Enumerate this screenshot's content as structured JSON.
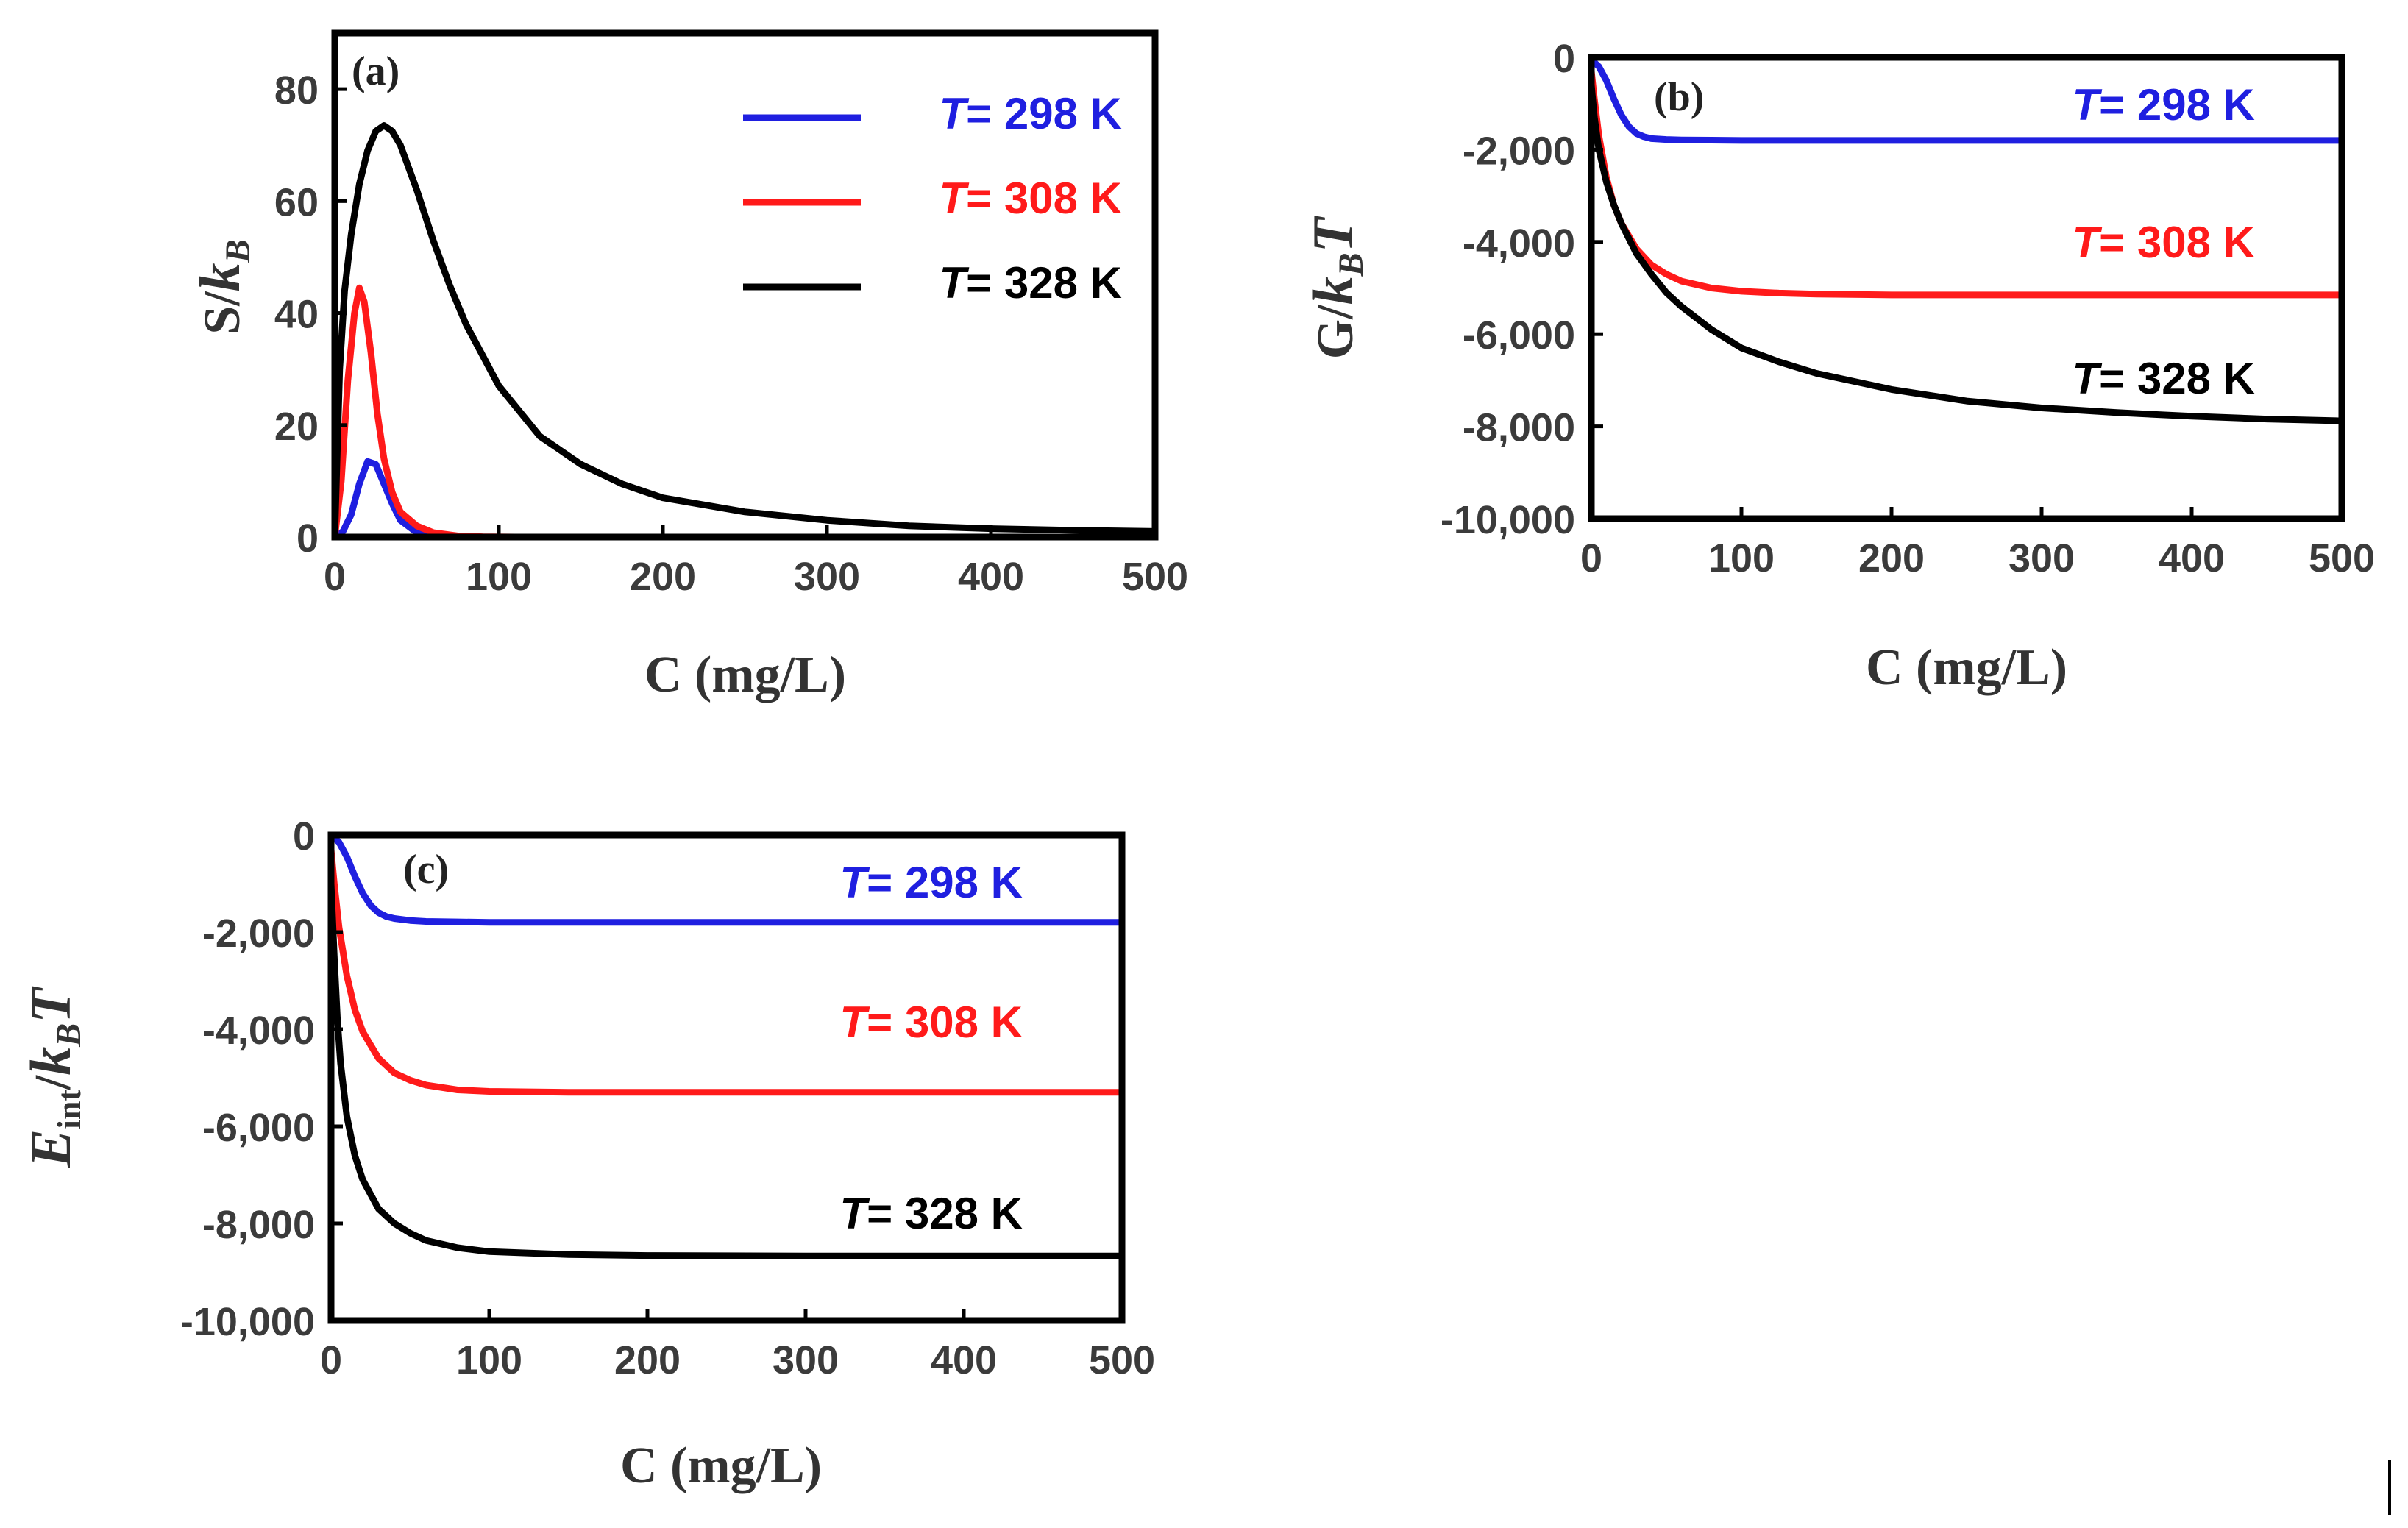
{
  "chart_data": [
    {
      "type": "line",
      "panel_label": "(a)",
      "xlabel": "C (mg/L)",
      "ylabel": "S/k_B",
      "ylabel_parts": {
        "main": "S/",
        "var": "k",
        "sub": "B",
        "tail": ""
      },
      "xlim": [
        0,
        500
      ],
      "ylim": [
        0,
        90
      ],
      "xticks": [
        0,
        100,
        200,
        300,
        400,
        500
      ],
      "xtick_labels": [
        "0",
        "100",
        "200",
        "300",
        "400",
        "500"
      ],
      "yticks": [
        0,
        20,
        40,
        60,
        80
      ],
      "ytick_labels": [
        "0",
        "20",
        "40",
        "60",
        "80"
      ],
      "legend": "top-right",
      "series": [
        {
          "name": "T= 298 K",
          "label_var": "T",
          "label_rest": "= 298 K",
          "color": "#1f1fe0",
          "x": [
            0,
            5,
            10,
            15,
            20,
            25,
            30,
            35,
            40,
            50,
            60,
            80
          ],
          "y": [
            0,
            1,
            4,
            9.5,
            13.5,
            13,
            9.5,
            6,
            3,
            0.8,
            0.2,
            0
          ]
        },
        {
          "name": "T= 308 K",
          "label_var": "T",
          "label_rest": "= 308 K",
          "color": "#ff1a1a",
          "x": [
            0,
            4,
            8,
            12,
            15,
            18,
            22,
            26,
            30,
            35,
            40,
            50,
            60,
            75,
            90,
            110
          ],
          "y": [
            0,
            10,
            28,
            40,
            44.5,
            42,
            33,
            22,
            14,
            8,
            4.5,
            2,
            0.8,
            0.2,
            0.05,
            0
          ]
        },
        {
          "name": "T= 328 K",
          "label_var": "T",
          "label_rest": "= 328 K",
          "color": "#000000",
          "x": [
            0,
            3,
            6,
            10,
            15,
            20,
            25,
            30,
            35,
            40,
            50,
            60,
            70,
            80,
            100,
            125,
            150,
            175,
            200,
            250,
            300,
            350,
            400,
            450,
            500
          ],
          "y": [
            0,
            30,
            44,
            54,
            63,
            69,
            72.5,
            73.5,
            72.5,
            70,
            62,
            53,
            45,
            38,
            27,
            18,
            13,
            9.5,
            7,
            4.5,
            3,
            2,
            1.5,
            1.2,
            1
          ]
        }
      ]
    },
    {
      "type": "line",
      "panel_label": "(b)",
      "xlabel": "C (mg/L)",
      "ylabel": "G/k_BT",
      "ylabel_parts": {
        "main": "G/",
        "var": "k",
        "sub": "B",
        "tail": "T"
      },
      "xlim": [
        0,
        500
      ],
      "ylim": [
        -10000,
        0
      ],
      "xticks": [
        0,
        100,
        200,
        300,
        400,
        500
      ],
      "xtick_labels": [
        "0",
        "100",
        "200",
        "300",
        "400",
        "500"
      ],
      "yticks": [
        0,
        -2000,
        -4000,
        -6000,
        -8000,
        -10000
      ],
      "ytick_labels": [
        "0",
        "-2,000",
        "-4,000",
        "-6,000",
        "-8,000",
        "-10,000"
      ],
      "series": [
        {
          "name": "T= 298 K",
          "label_var": "T",
          "label_rest": "= 298 K",
          "color": "#1f1fe0",
          "x": [
            0,
            5,
            10,
            15,
            20,
            25,
            30,
            35,
            40,
            50,
            60,
            80,
            100,
            200,
            300,
            400,
            500
          ],
          "y": [
            -50,
            -200,
            -500,
            -900,
            -1250,
            -1500,
            -1650,
            -1720,
            -1760,
            -1780,
            -1790,
            -1795,
            -1800,
            -1800,
            -1800,
            -1800,
            -1800
          ]
        },
        {
          "name": "T= 308 K",
          "label_var": "T",
          "label_rest": "= 308 K",
          "color": "#ff1a1a",
          "x": [
            0,
            2,
            5,
            10,
            15,
            20,
            30,
            40,
            50,
            60,
            80,
            100,
            125,
            150,
            200,
            250,
            300,
            400,
            500
          ],
          "y": [
            -300,
            -900,
            -1700,
            -2600,
            -3200,
            -3600,
            -4150,
            -4500,
            -4700,
            -4850,
            -5000,
            -5070,
            -5110,
            -5130,
            -5150,
            -5150,
            -5150,
            -5150,
            -5150
          ]
        },
        {
          "name": "T= 328 K",
          "label_var": "T",
          "label_rest": "= 328 K",
          "color": "#000000",
          "x": [
            0,
            2,
            5,
            10,
            15,
            20,
            30,
            40,
            50,
            60,
            80,
            100,
            125,
            150,
            200,
            250,
            300,
            350,
            400,
            450,
            500
          ],
          "y": [
            -600,
            -1300,
            -2000,
            -2700,
            -3200,
            -3600,
            -4250,
            -4700,
            -5100,
            -5400,
            -5900,
            -6300,
            -6600,
            -6850,
            -7200,
            -7450,
            -7600,
            -7700,
            -7780,
            -7840,
            -7880
          ]
        }
      ]
    },
    {
      "type": "line",
      "panel_label": "(c)",
      "xlabel": "C (mg/L)",
      "ylabel": "E_int/k_BT",
      "ylabel_parts": {
        "main": "E",
        "main_sub": "int",
        "slash": "/",
        "var": "k",
        "sub": "B",
        "tail": "T"
      },
      "xlim": [
        0,
        500
      ],
      "ylim": [
        -10000,
        0
      ],
      "xticks": [
        0,
        100,
        200,
        300,
        400,
        500
      ],
      "xtick_labels": [
        "0",
        "100",
        "200",
        "300",
        "400",
        "500"
      ],
      "yticks": [
        0,
        -2000,
        -4000,
        -6000,
        -8000,
        -10000
      ],
      "ytick_labels": [
        "0",
        "-2,000",
        "-4,000",
        "-6,000",
        "-8,000",
        "-10,000"
      ],
      "series": [
        {
          "name": "T= 298 K",
          "label_var": "T",
          "label_rest": "= 298 K",
          "color": "#1f1fe0",
          "x": [
            0,
            5,
            10,
            15,
            20,
            25,
            30,
            35,
            40,
            50,
            60,
            80,
            100,
            200,
            300,
            400,
            500
          ],
          "y": [
            0,
            -150,
            -450,
            -850,
            -1200,
            -1450,
            -1600,
            -1680,
            -1720,
            -1760,
            -1780,
            -1790,
            -1800,
            -1800,
            -1800,
            -1800,
            -1800
          ]
        },
        {
          "name": "T= 308 K",
          "label_var": "T",
          "label_rest": "= 308 K",
          "color": "#ff1a1a",
          "x": [
            0,
            2,
            5,
            10,
            15,
            20,
            30,
            40,
            50,
            60,
            80,
            100,
            125,
            150,
            200,
            300,
            400,
            500
          ],
          "y": [
            -300,
            -1000,
            -1900,
            -2900,
            -3600,
            -4050,
            -4600,
            -4900,
            -5050,
            -5150,
            -5250,
            -5280,
            -5290,
            -5300,
            -5300,
            -5300,
            -5300,
            -5300
          ]
        },
        {
          "name": "T= 328 K",
          "label_var": "T",
          "label_rest": "= 328 K",
          "color": "#000000",
          "x": [
            0,
            2,
            4,
            6,
            10,
            15,
            20,
            30,
            40,
            50,
            60,
            80,
            100,
            150,
            200,
            300,
            400,
            500
          ],
          "y": [
            -1000,
            -2500,
            -3800,
            -4700,
            -5800,
            -6600,
            -7100,
            -7700,
            -8000,
            -8200,
            -8350,
            -8500,
            -8580,
            -8640,
            -8660,
            -8670,
            -8670,
            -8670
          ]
        }
      ]
    }
  ]
}
